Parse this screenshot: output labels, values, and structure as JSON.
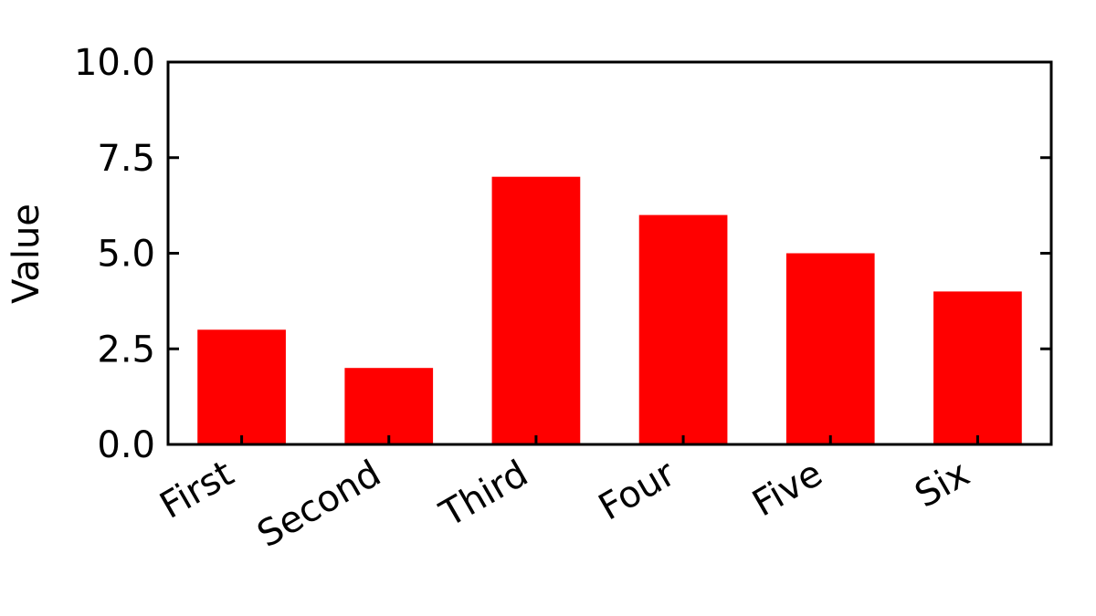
{
  "chart_data": {
    "type": "bar",
    "title": "",
    "xlabel": "",
    "ylabel": "Value",
    "categories": [
      "First",
      "Second",
      "Third",
      "Four",
      "Five",
      "Six"
    ],
    "values": [
      3,
      2,
      7,
      6,
      5,
      4
    ],
    "ylim": [
      0,
      10
    ],
    "yticks": [
      0,
      2.5,
      5,
      7.5,
      10
    ],
    "ytick_labels": [
      "0.0",
      "2.5",
      "5.0",
      "7.5",
      "10.0"
    ],
    "bar_color": "#ff0000",
    "grid": false,
    "legend": "none"
  }
}
